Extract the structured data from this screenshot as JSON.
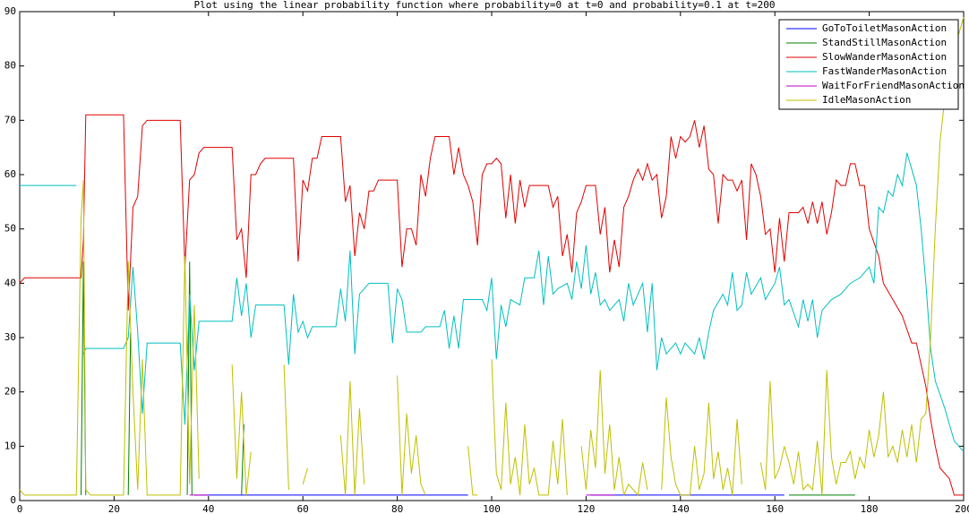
{
  "chart_data": {
    "type": "line",
    "title": "Plot using the linear probability function where probability=0 at t=0 and probability=0.1 at t=200",
    "xlim": [
      0,
      200
    ],
    "xticks": [
      0,
      20,
      40,
      60,
      80,
      100,
      120,
      140,
      160,
      180,
      200
    ],
    "ylim": [
      0,
      90
    ],
    "yticks": [
      0,
      10,
      20,
      30,
      40,
      50,
      60,
      70,
      80,
      90
    ],
    "legend": "upper right",
    "series": [
      {
        "name": "GoToToiletMasonAction",
        "color": "#0000ff",
        "x": [
          37,
          95,
          96,
          121,
          162
        ],
        "values": [
          1,
          1,
          null,
          1,
          1
        ]
      },
      {
        "name": "StandStillMasonAction",
        "color": "#008000",
        "x": [
          13,
          13.5,
          14,
          15,
          23,
          23.5,
          24,
          35.5,
          36,
          36.5,
          37,
          47,
          47.5,
          48,
          163,
          177
        ],
        "values": [
          1,
          44,
          1,
          null,
          1,
          31,
          null,
          1,
          44,
          1,
          null,
          1,
          14,
          null,
          1,
          1
        ]
      },
      {
        "name": "SlowWanderMasonAction",
        "color": "#e00000",
        "x": [
          0,
          1,
          12,
          13,
          13.5,
          14,
          22,
          23,
          24,
          25,
          26,
          27,
          34,
          35,
          36,
          37,
          38,
          39,
          45,
          46,
          47,
          48,
          49,
          50,
          51,
          52,
          58,
          59,
          60,
          61,
          62,
          63,
          64,
          68,
          69,
          70,
          71,
          72,
          73,
          74,
          75,
          76,
          80,
          81,
          82,
          83,
          84,
          85,
          86,
          87,
          88,
          91,
          92,
          93,
          94,
          95,
          96,
          97,
          98,
          99,
          100,
          101,
          102,
          103,
          104,
          105,
          106,
          107,
          108,
          112,
          113,
          114,
          115,
          116,
          117,
          118,
          119,
          120,
          122,
          123,
          124,
          125,
          126,
          127,
          128,
          129,
          130,
          131,
          132,
          133,
          134,
          135,
          136,
          137,
          138,
          139,
          140,
          141,
          142,
          143,
          144,
          145,
          146,
          147,
          148,
          149,
          150,
          151,
          152,
          153,
          154,
          155,
          156,
          157,
          158,
          159,
          160,
          161,
          162,
          163,
          165,
          166,
          167,
          168,
          169,
          170,
          171,
          172,
          173,
          174,
          175,
          176,
          177,
          178,
          179,
          180,
          182,
          183,
          185,
          187,
          189,
          190,
          192,
          193,
          194,
          195,
          196,
          197,
          198,
          200
        ],
        "values": [
          40,
          41,
          41,
          41,
          48,
          71,
          71,
          35,
          54,
          56,
          69,
          70,
          70,
          43,
          59,
          60,
          64,
          65,
          65,
          48,
          50,
          41,
          60,
          60,
          62,
          63,
          63,
          44,
          59,
          57,
          63,
          63,
          67,
          67,
          55,
          58,
          45,
          53,
          50,
          57,
          57,
          59,
          59,
          43,
          50,
          50,
          47,
          60,
          56,
          63,
          67,
          67,
          60,
          65,
          60,
          58,
          55,
          47,
          60,
          62,
          62,
          63,
          62,
          52,
          60,
          51,
          59,
          54,
          58,
          58,
          54,
          56,
          45,
          49,
          42,
          53,
          55,
          58,
          58,
          49,
          54,
          42,
          48,
          43,
          54,
          56,
          59,
          61,
          59,
          62,
          59,
          60,
          52,
          56,
          67,
          63,
          67,
          66,
          67,
          70,
          65,
          69,
          61,
          60,
          51,
          60,
          59,
          59,
          57,
          59,
          48,
          62,
          60,
          56,
          49,
          50,
          42,
          52,
          44,
          53,
          53,
          54,
          51,
          55,
          51,
          55,
          49,
          53,
          59,
          58,
          58,
          62,
          62,
          58,
          58,
          50,
          45,
          40,
          37,
          34,
          29,
          29,
          21,
          15,
          10,
          6,
          5,
          4,
          1,
          1
        ]
      },
      {
        "name": "FastWanderMasonAction",
        "color": "#00bfbf",
        "x": [
          0,
          12,
          12.5,
          13.5,
          14,
          22,
          23,
          24,
          25,
          26,
          27,
          34,
          35,
          36,
          37,
          38,
          45,
          46,
          47,
          48,
          49,
          50,
          56,
          57,
          58,
          59,
          60,
          61,
          62,
          67,
          68,
          69,
          70,
          71,
          72,
          73,
          74,
          78,
          79,
          80,
          81,
          82,
          85,
          86,
          89,
          90,
          91,
          92,
          93,
          94,
          98,
          99,
          100,
          101,
          102,
          103,
          104,
          106,
          107,
          109,
          110,
          111,
          112,
          113,
          114,
          116,
          117,
          118,
          119,
          120,
          121,
          122,
          123,
          124,
          125,
          127,
          128,
          129,
          130,
          132,
          133,
          134,
          135,
          136,
          137,
          139,
          140,
          141,
          143,
          144,
          145,
          146,
          147,
          149,
          150,
          151,
          152,
          153,
          154,
          155,
          157,
          158,
          160,
          161,
          162,
          163,
          165,
          166,
          167,
          168,
          169,
          170,
          172,
          174,
          176,
          178,
          180,
          181,
          182,
          183,
          184,
          185,
          186,
          187,
          188,
          189,
          190,
          191,
          192,
          193,
          194,
          196,
          198,
          200
        ],
        "values": [
          58,
          58,
          null,
          27,
          28,
          28,
          30,
          43,
          31,
          16,
          29,
          29,
          14,
          38,
          24,
          33,
          33,
          41,
          34,
          40,
          30,
          36,
          36,
          25,
          38,
          31,
          33,
          30,
          32,
          32,
          39,
          33,
          46,
          27,
          38,
          39,
          40,
          40,
          29,
          39,
          37,
          31,
          31,
          32,
          32,
          35,
          28,
          34,
          28,
          37,
          37,
          35,
          41,
          26,
          36,
          32,
          37,
          36,
          41,
          41,
          46,
          36,
          45,
          38,
          39,
          40,
          37,
          44,
          39,
          47,
          38,
          42,
          36,
          37,
          35,
          37,
          33,
          40,
          36,
          40,
          31,
          40,
          24,
          30,
          27,
          29,
          27,
          29,
          27,
          30,
          26,
          31,
          35,
          38,
          36,
          42,
          35,
          36,
          42,
          38,
          41,
          37,
          40,
          43,
          36,
          37,
          32,
          37,
          33,
          37,
          30,
          35,
          37,
          38,
          40,
          41,
          43,
          40,
          54,
          53,
          57,
          56,
          60,
          58,
          64,
          61,
          58,
          50,
          40,
          28,
          22,
          17,
          11,
          9
        ]
      },
      {
        "name": "WaitForFriendMasonAction",
        "color": "#bf00bf",
        "x": [
          36,
          40,
          41,
          120,
          126
        ],
        "values": [
          1,
          1,
          null,
          1,
          1
        ]
      },
      {
        "name": "IdleMasonAction",
        "color": "#bfbf00",
        "x": [
          0,
          1,
          12,
          13,
          13.5,
          14,
          15,
          22,
          23,
          24,
          25,
          26,
          27,
          34,
          35,
          36,
          37,
          38,
          40,
          45,
          46,
          47,
          48,
          49,
          50,
          56,
          57,
          58,
          60,
          61,
          62,
          68,
          69,
          70,
          71,
          72,
          73,
          74,
          80,
          81,
          82,
          83,
          84,
          85,
          86,
          87,
          95,
          96,
          97,
          98,
          100,
          101,
          102,
          103,
          104,
          105,
          106,
          107,
          108,
          109,
          110,
          112,
          113,
          114,
          115,
          116,
          117,
          119,
          120,
          121,
          122,
          123,
          124,
          125,
          126,
          127,
          128,
          129,
          130,
          131,
          132,
          133,
          134,
          136,
          137,
          138,
          139,
          140,
          142,
          143,
          144,
          145,
          146,
          147,
          148,
          149,
          150,
          151,
          152,
          153,
          154,
          157,
          158,
          159,
          160,
          161,
          162,
          163,
          164,
          165,
          166,
          167,
          168,
          169,
          170,
          171,
          172,
          173,
          174,
          175,
          176,
          177,
          178,
          179,
          180,
          181,
          182,
          183,
          184,
          185,
          186,
          187,
          188,
          189,
          190,
          191,
          192,
          193,
          194,
          195,
          196,
          197,
          199,
          200
        ],
        "values": [
          2,
          1,
          1,
          52,
          59,
          2,
          1,
          1,
          44,
          20,
          2,
          26,
          1,
          1,
          45,
          3,
          36,
          4,
          null,
          25,
          4,
          20,
          1,
          9,
          null,
          25,
          2,
          null,
          3,
          6,
          null,
          12,
          1,
          22,
          1,
          17,
          3,
          null,
          23,
          1,
          16,
          5,
          12,
          3,
          1,
          null,
          10,
          1,
          1,
          null,
          26,
          5,
          2,
          18,
          3,
          8,
          1,
          14,
          3,
          6,
          1,
          1,
          11,
          3,
          15,
          1,
          null,
          10,
          2,
          13,
          6,
          24,
          5,
          14,
          2,
          8,
          1,
          3,
          2,
          1,
          7,
          2,
          null,
          2,
          19,
          8,
          3,
          1,
          1,
          10,
          2,
          5,
          18,
          4,
          9,
          2,
          6,
          1,
          15,
          3,
          null,
          7,
          2,
          22,
          4,
          6,
          10,
          7,
          3,
          9,
          2,
          3,
          2,
          11,
          1,
          24,
          8,
          3,
          7,
          7,
          9,
          4,
          8,
          6,
          13,
          8,
          12,
          20,
          8,
          10,
          7,
          13,
          8,
          14,
          7,
          15,
          16,
          30,
          50,
          66,
          74,
          80,
          86,
          89
        ]
      }
    ]
  }
}
